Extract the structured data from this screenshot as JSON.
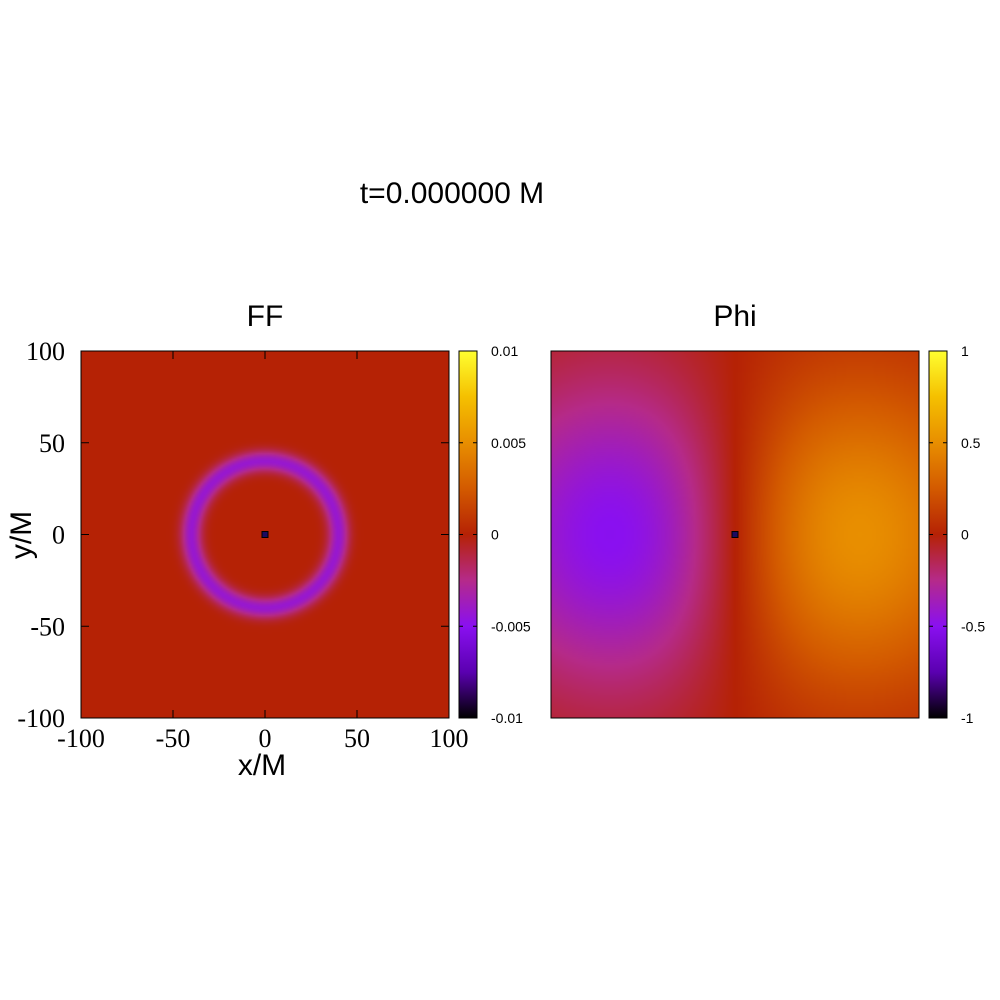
{
  "figure_title": "t=0.000000 M",
  "palette": {
    "name": "gnuplot pm3d (7,5,15)",
    "stops": [
      "#000000",
      "#5a00b0",
      "#8a10f0",
      "#b52a8a",
      "#b52205",
      "#d35a00",
      "#e88e00",
      "#f5c000",
      "#ffff30"
    ]
  },
  "marker_color": "#1a0a60",
  "chart_data": [
    {
      "type": "heatmap",
      "title": "FF",
      "xlabel": "x/M",
      "ylabel": "y/M",
      "xlim": [
        -100,
        100
      ],
      "ylim": [
        -100,
        100
      ],
      "x_ticks": [
        -100,
        -50,
        0,
        50,
        100
      ],
      "y_ticks": [
        -100,
        -50,
        0,
        50,
        100
      ],
      "x_tick_labels": [
        "-100",
        "-50",
        "0",
        "50",
        "100"
      ],
      "y_tick_labels": [
        "-100",
        "-50",
        "0",
        "50",
        "100"
      ],
      "colorbar": {
        "range": [
          -0.01,
          0.01
        ],
        "ticks": [
          0.01,
          0.005,
          0,
          -0.005,
          -0.01
        ],
        "tick_labels": [
          "0.01",
          "0.005",
          "0",
          "-0.005",
          "-0.01"
        ]
      },
      "background_value": 0.0,
      "features": [
        {
          "kind": "gaussian-ring",
          "center": [
            0,
            0
          ],
          "radius": 40,
          "width": 4,
          "amplitude": -0.0042
        },
        {
          "kind": "point-marker",
          "center": [
            0,
            0
          ]
        }
      ]
    },
    {
      "type": "heatmap",
      "title": "Phi",
      "xlim": [
        -100,
        100
      ],
      "ylim": [
        -100,
        100
      ],
      "colorbar": {
        "range": [
          -1,
          1
        ],
        "ticks": [
          1,
          0.5,
          0,
          -0.5,
          -1
        ],
        "tick_labels": [
          "1",
          "0.5",
          "0",
          "-0.5",
          "-1"
        ]
      },
      "features": [
        {
          "kind": "dipole",
          "center_pos": [
            50,
            0
          ],
          "center_neg": [
            -50,
            0
          ],
          "peak_pos": 0.62,
          "peak_neg": -0.62,
          "spread": 60
        },
        {
          "kind": "point-marker",
          "center": [
            0,
            0
          ]
        }
      ]
    }
  ]
}
